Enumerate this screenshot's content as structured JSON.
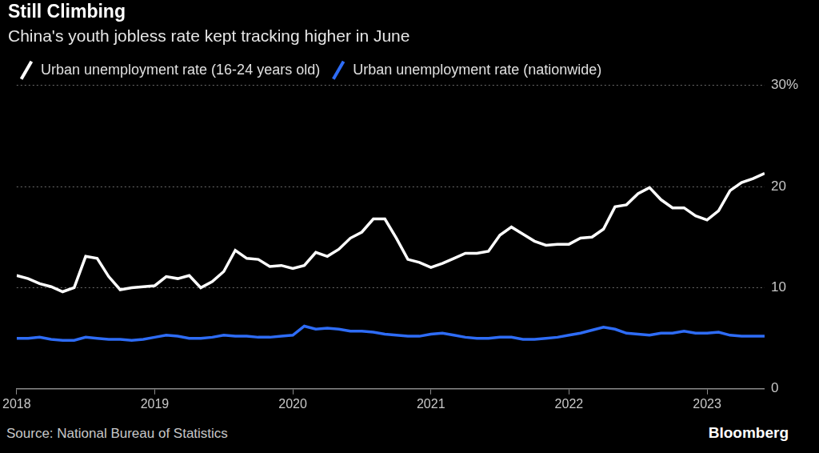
{
  "chart_data": {
    "type": "line",
    "title": "Still Climbing",
    "subtitle": "China's youth jobless rate kept tracking higher in June",
    "source": "Source: National Bureau of Statistics",
    "brand": "Bloomberg",
    "categories": [
      "2018",
      null,
      null,
      null,
      null,
      null,
      null,
      null,
      null,
      null,
      null,
      null,
      "2019",
      null,
      null,
      null,
      null,
      null,
      null,
      null,
      null,
      null,
      null,
      null,
      "2020",
      null,
      null,
      null,
      null,
      null,
      null,
      null,
      null,
      null,
      null,
      null,
      "2021",
      null,
      null,
      null,
      null,
      null,
      null,
      null,
      null,
      null,
      null,
      null,
      "2022",
      null,
      null,
      null,
      null,
      null,
      null,
      null,
      null,
      null,
      null,
      null,
      "2023",
      null,
      null,
      null,
      null,
      null
    ],
    "series": [
      {
        "name": "Urban unemployment rate (16-24 years old)",
        "color": "#ffffff",
        "marker": "none",
        "line_style": "solid",
        "values": [
          11.2,
          10.9,
          10.4,
          10.1,
          9.6,
          10.0,
          13.1,
          12.9,
          11.1,
          9.8,
          10.0,
          10.1,
          10.2,
          11.1,
          10.9,
          11.2,
          10.0,
          10.6,
          11.6,
          13.7,
          12.9,
          12.8,
          12.1,
          12.2,
          11.9,
          12.2,
          13.5,
          13.1,
          13.8,
          14.9,
          15.5,
          16.8,
          16.8,
          14.9,
          12.8,
          12.5,
          12.0,
          12.4,
          12.9,
          13.4,
          13.4,
          13.6,
          15.2,
          16.0,
          15.3,
          14.6,
          14.2,
          14.3,
          14.3,
          14.9,
          15.0,
          15.8,
          18.0,
          18.2,
          19.3,
          19.9,
          18.7,
          17.9,
          17.9,
          17.1,
          16.7,
          17.6,
          19.6,
          20.4,
          20.8,
          21.3
        ]
      },
      {
        "name": "Urban unemployment rate (nationwide)",
        "color": "#2e6cf6",
        "marker": "none",
        "line_style": "solid",
        "values": [
          5.0,
          5.0,
          5.1,
          4.9,
          4.8,
          4.8,
          5.1,
          5.0,
          4.9,
          4.9,
          4.8,
          4.9,
          5.1,
          5.3,
          5.2,
          5.0,
          5.0,
          5.1,
          5.3,
          5.2,
          5.2,
          5.1,
          5.1,
          5.2,
          5.3,
          6.2,
          5.9,
          6.0,
          5.9,
          5.7,
          5.7,
          5.6,
          5.4,
          5.3,
          5.2,
          5.2,
          5.4,
          5.5,
          5.3,
          5.1,
          5.0,
          5.0,
          5.1,
          5.1,
          4.9,
          4.9,
          5.0,
          5.1,
          5.3,
          5.5,
          5.8,
          6.1,
          5.9,
          5.5,
          5.4,
          5.3,
          5.5,
          5.5,
          5.7,
          5.5,
          5.5,
          5.6,
          5.3,
          5.2,
          5.2,
          5.2
        ]
      }
    ],
    "ylim": [
      0,
      30
    ],
    "yticks": [
      0,
      10,
      20,
      {
        "value": 30,
        "label": "30%"
      }
    ],
    "grid": true,
    "legend": "top-left"
  }
}
